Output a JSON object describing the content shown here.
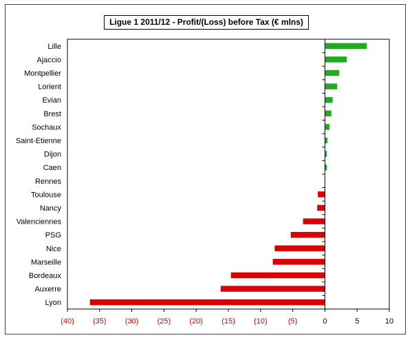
{
  "chart_data": {
    "type": "bar",
    "orientation": "horizontal",
    "title": "Ligue 1 2011/12 - Profit/(Loss) before Tax (€ mlns)",
    "categories": [
      "Lille",
      "Ajaccio",
      "Montpellier",
      "Lorient",
      "Evian",
      "Brest",
      "Sochaux",
      "Saint-Etienne",
      "Dijon",
      "Caen",
      "Rennes",
      "Toulouse",
      "Nancy",
      "Valenciennes",
      "PSG",
      "Nice",
      "Marseille",
      "Bordeaux",
      "Auxerre",
      "Lyon"
    ],
    "values": [
      6.5,
      3.4,
      2.2,
      1.9,
      1.2,
      1.0,
      0.7,
      0.4,
      0.3,
      0.3,
      0.0,
      -1.1,
      -1.2,
      -3.4,
      -5.3,
      -7.8,
      -8.1,
      -14.6,
      -16.2,
      -36.5
    ],
    "x_ticks": [
      "(40)",
      "(35)",
      "(30)",
      "(25)",
      "(20)",
      "(15)",
      "(10)",
      "(5)",
      "0",
      "5",
      "10"
    ],
    "xlim": [
      -40,
      10
    ],
    "grid": false,
    "colors": {
      "positive": "#22aa22",
      "negative": "#dd0000",
      "negative_tick_label": "#cc0000"
    }
  }
}
